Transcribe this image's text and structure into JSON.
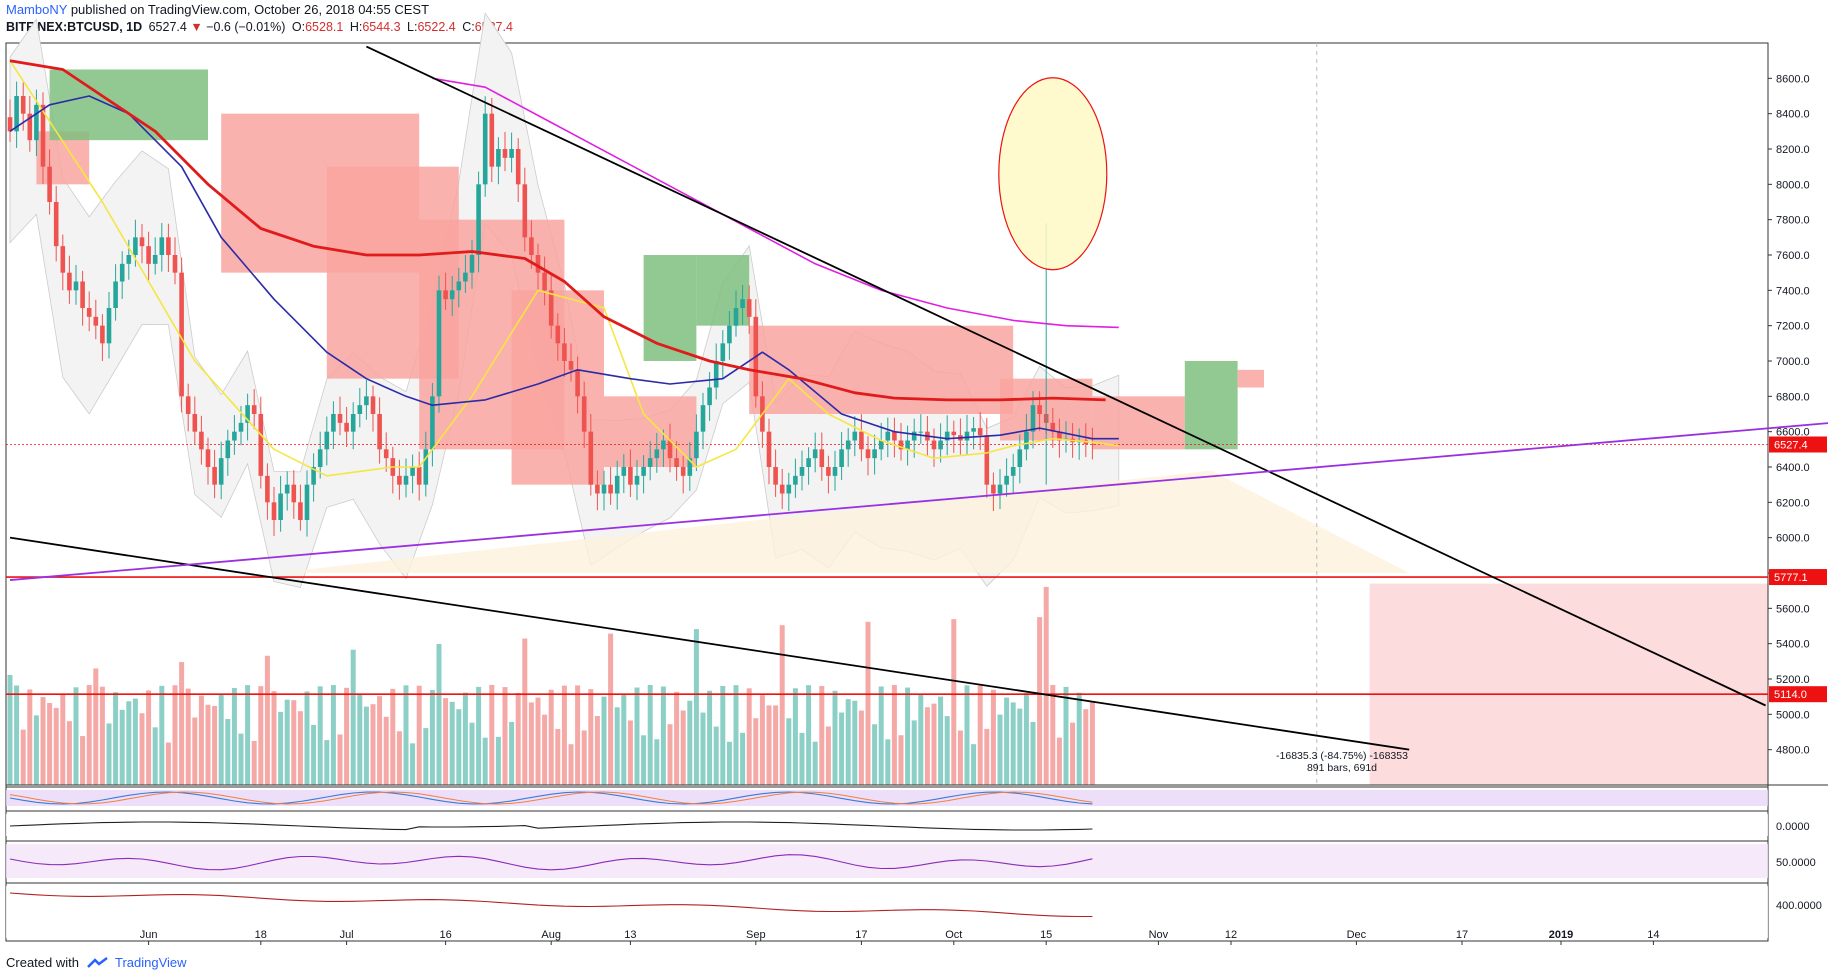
{
  "header": {
    "author": "MamboNY",
    "published": "published on TradingView.com, October 26, 2018 04:55 CEST",
    "symbol": "BITFINEX:BTCUSD, 1D",
    "last": "6527.4",
    "change": "−0.6 (−0.01%)",
    "open_label": "O:",
    "open": "6528.1",
    "high_label": "H:",
    "high": "6544.3",
    "low_label": "L:",
    "low": "6522.4",
    "close_label": "C:",
    "close": "6527.4"
  },
  "footer": {
    "created_with": "Created with",
    "brand": "TradingView"
  },
  "colors": {
    "up": "#26a69a",
    "down": "#ef5350",
    "vol_up": "#8ccfc6",
    "vol_down": "#f4a9a7",
    "ma_fast": "#f5e642",
    "ma_mid": "#2b2ba8",
    "ma_slow": "#e01b1b",
    "ma_long": "#e020e0",
    "trend": "#000000",
    "support": "#9b30e0",
    "level": "#ee1111"
  },
  "chart_data": {
    "type": "candlestick",
    "symbol": "BITFINEX:BTCUSD",
    "timeframe": "1D",
    "ylim": [
      4600,
      8800
    ],
    "yticks": [
      4800,
      5000,
      5200,
      5400,
      5600,
      5800,
      6000,
      6200,
      6400,
      6600,
      6800,
      7000,
      7200,
      7400,
      7600,
      7800,
      8000,
      8200,
      8400,
      8600
    ],
    "ytick_labels": [
      "4800.0",
      "5000.0",
      "5200.0",
      "5400.0",
      "5600.0",
      "5800.0",
      "6000.0",
      "6200.0",
      "6400.0",
      "6600.0",
      "6800.0",
      "7000.0",
      "7200.0",
      "7400.0",
      "7600.0",
      "7800.0",
      "8000.0",
      "8200.0",
      "8400.0",
      "8600.0"
    ],
    "start_date": "2018-05-11",
    "xticks": [
      {
        "day": 21,
        "label": "Jun"
      },
      {
        "day": 38,
        "label": "18"
      },
      {
        "day": 51,
        "label": "Jul"
      },
      {
        "day": 66,
        "label": "16"
      },
      {
        "day": 82,
        "label": "Aug"
      },
      {
        "day": 94,
        "label": "13"
      },
      {
        "day": 113,
        "label": "Sep"
      },
      {
        "day": 129,
        "label": "17"
      },
      {
        "day": 143,
        "label": "Oct"
      },
      {
        "day": 157,
        "label": "15"
      },
      {
        "day": 174,
        "label": "Nov"
      },
      {
        "day": 185,
        "label": "12"
      },
      {
        "day": 204,
        "label": "Dec"
      },
      {
        "day": 220,
        "label": "17"
      },
      {
        "day": 235,
        "label": "2019"
      },
      {
        "day": 249,
        "label": "14"
      }
    ],
    "closes": [
      8300,
      8500,
      8400,
      8250,
      8450,
      8100,
      7900,
      7650,
      7500,
      7400,
      7450,
      7300,
      7250,
      7200,
      7100,
      7300,
      7450,
      7550,
      7600,
      7700,
      7650,
      7550,
      7600,
      7700,
      7600,
      7500,
      6800,
      6700,
      6600,
      6500,
      6400,
      6300,
      6450,
      6550,
      6600,
      6650,
      6750,
      6700,
      6350,
      6200,
      6100,
      6250,
      6300,
      6200,
      6100,
      6300,
      6400,
      6500,
      6600,
      6700,
      6650,
      6600,
      6700,
      6750,
      6800,
      6700,
      6500,
      6450,
      6350,
      6300,
      6350,
      6400,
      6300,
      6500,
      6800,
      7400,
      7350,
      7400,
      7450,
      7500,
      7600,
      8000,
      8400,
      8100,
      8200,
      8150,
      8200,
      8000,
      7700,
      7600,
      7500,
      7400,
      7200,
      7100,
      7000,
      6950,
      6800,
      6600,
      6300,
      6250,
      6300,
      6250,
      6350,
      6400,
      6300,
      6350,
      6400,
      6450,
      6500,
      6550,
      6450,
      6400,
      6350,
      6450,
      6600,
      6750,
      6850,
      7000,
      7100,
      7200,
      7300,
      7350,
      7250,
      6800,
      6600,
      6400,
      6300,
      6250,
      6300,
      6350,
      6400,
      6450,
      6500,
      6400,
      6350,
      6400,
      6500,
      6550,
      6600,
      6500,
      6450,
      6500,
      6550,
      6600,
      6550,
      6500,
      6550,
      6600,
      6600,
      6550,
      6500,
      6550,
      6600,
      6580,
      6550,
      6600,
      6620,
      6580,
      6300,
      6250,
      6300,
      6350,
      6400,
      6500,
      6600,
      6750,
      6700,
      6650,
      6600,
      6550,
      6560,
      6540,
      6550,
      6530,
      6527
    ],
    "series": [
      {
        "name": "SMA fast",
        "color": "#f5e642",
        "values": [
          [
            0,
            8700
          ],
          [
            14,
            7900
          ],
          [
            28,
            7000
          ],
          [
            40,
            6500
          ],
          [
            48,
            6350
          ],
          [
            58,
            6400
          ],
          [
            62,
            6400
          ],
          [
            70,
            6800
          ],
          [
            80,
            7400
          ],
          [
            90,
            7300
          ],
          [
            96,
            6700
          ],
          [
            104,
            6400
          ],
          [
            110,
            6500
          ],
          [
            118,
            6900
          ],
          [
            124,
            6700
          ],
          [
            132,
            6550
          ],
          [
            140,
            6450
          ],
          [
            148,
            6480
          ],
          [
            152,
            6520
          ],
          [
            158,
            6560
          ],
          [
            164,
            6540
          ],
          [
            168,
            6520
          ]
        ]
      },
      {
        "name": "SMA mid",
        "color": "#2b2ba8",
        "values": [
          [
            0,
            8300
          ],
          [
            6,
            8450
          ],
          [
            12,
            8500
          ],
          [
            18,
            8400
          ],
          [
            26,
            8100
          ],
          [
            32,
            7700
          ],
          [
            40,
            7350
          ],
          [
            48,
            7050
          ],
          [
            54,
            6900
          ],
          [
            60,
            6800
          ],
          [
            64,
            6750
          ],
          [
            72,
            6780
          ],
          [
            80,
            6870
          ],
          [
            86,
            6950
          ],
          [
            94,
            6900
          ],
          [
            100,
            6870
          ],
          [
            108,
            6900
          ],
          [
            114,
            7050
          ],
          [
            118,
            6950
          ],
          [
            126,
            6700
          ],
          [
            134,
            6600
          ],
          [
            142,
            6560
          ],
          [
            150,
            6580
          ],
          [
            156,
            6620
          ],
          [
            164,
            6560
          ],
          [
            168,
            6560
          ]
        ]
      },
      {
        "name": "SMA slow",
        "color": "#e01b1b",
        "values": [
          [
            0,
            8700
          ],
          [
            8,
            8650
          ],
          [
            14,
            8500
          ],
          [
            22,
            8300
          ],
          [
            30,
            8000
          ],
          [
            38,
            7750
          ],
          [
            46,
            7650
          ],
          [
            54,
            7600
          ],
          [
            62,
            7600
          ],
          [
            70,
            7620
          ],
          [
            78,
            7580
          ],
          [
            84,
            7450
          ],
          [
            90,
            7250
          ],
          [
            98,
            7100
          ],
          [
            106,
            7000
          ],
          [
            112,
            6950
          ],
          [
            120,
            6900
          ],
          [
            128,
            6820
          ],
          [
            134,
            6790
          ],
          [
            142,
            6780
          ],
          [
            150,
            6780
          ],
          [
            158,
            6790
          ],
          [
            166,
            6780
          ]
        ]
      },
      {
        "name": "SMA long",
        "color": "#e020e0",
        "values": [
          [
            64,
            8600
          ],
          [
            72,
            8550
          ],
          [
            82,
            8350
          ],
          [
            92,
            8150
          ],
          [
            102,
            7950
          ],
          [
            112,
            7750
          ],
          [
            122,
            7550
          ],
          [
            132,
            7400
          ],
          [
            142,
            7300
          ],
          [
            152,
            7230
          ],
          [
            160,
            7200
          ],
          [
            168,
            7190
          ]
        ]
      }
    ],
    "trendlines": [
      {
        "from": [
          54,
          8780
        ],
        "to": [
          266,
          5050
        ],
        "color": "#000000"
      },
      {
        "from": [
          0,
          6000
        ],
        "to": [
          212,
          4800
        ],
        "color": "#000000"
      },
      {
        "from": [
          0,
          5760
        ],
        "to": [
          276,
          6650
        ],
        "color": "#9b30e0"
      }
    ],
    "levels": [
      {
        "value": 5777.1,
        "label": "5777.1",
        "color": "#ee1111"
      },
      {
        "value": 5114.0,
        "label": "5114.0",
        "color": "#ee1111"
      }
    ],
    "last_price": {
      "value": 6527.4,
      "label": "6527.4"
    },
    "annotation": {
      "line1": "-16835.3 (-84.75%) -168353",
      "line2": "891 bars, 691d"
    },
    "oscillator_labels": [
      "0.0000",
      "50.0000",
      "400.0000"
    ]
  }
}
